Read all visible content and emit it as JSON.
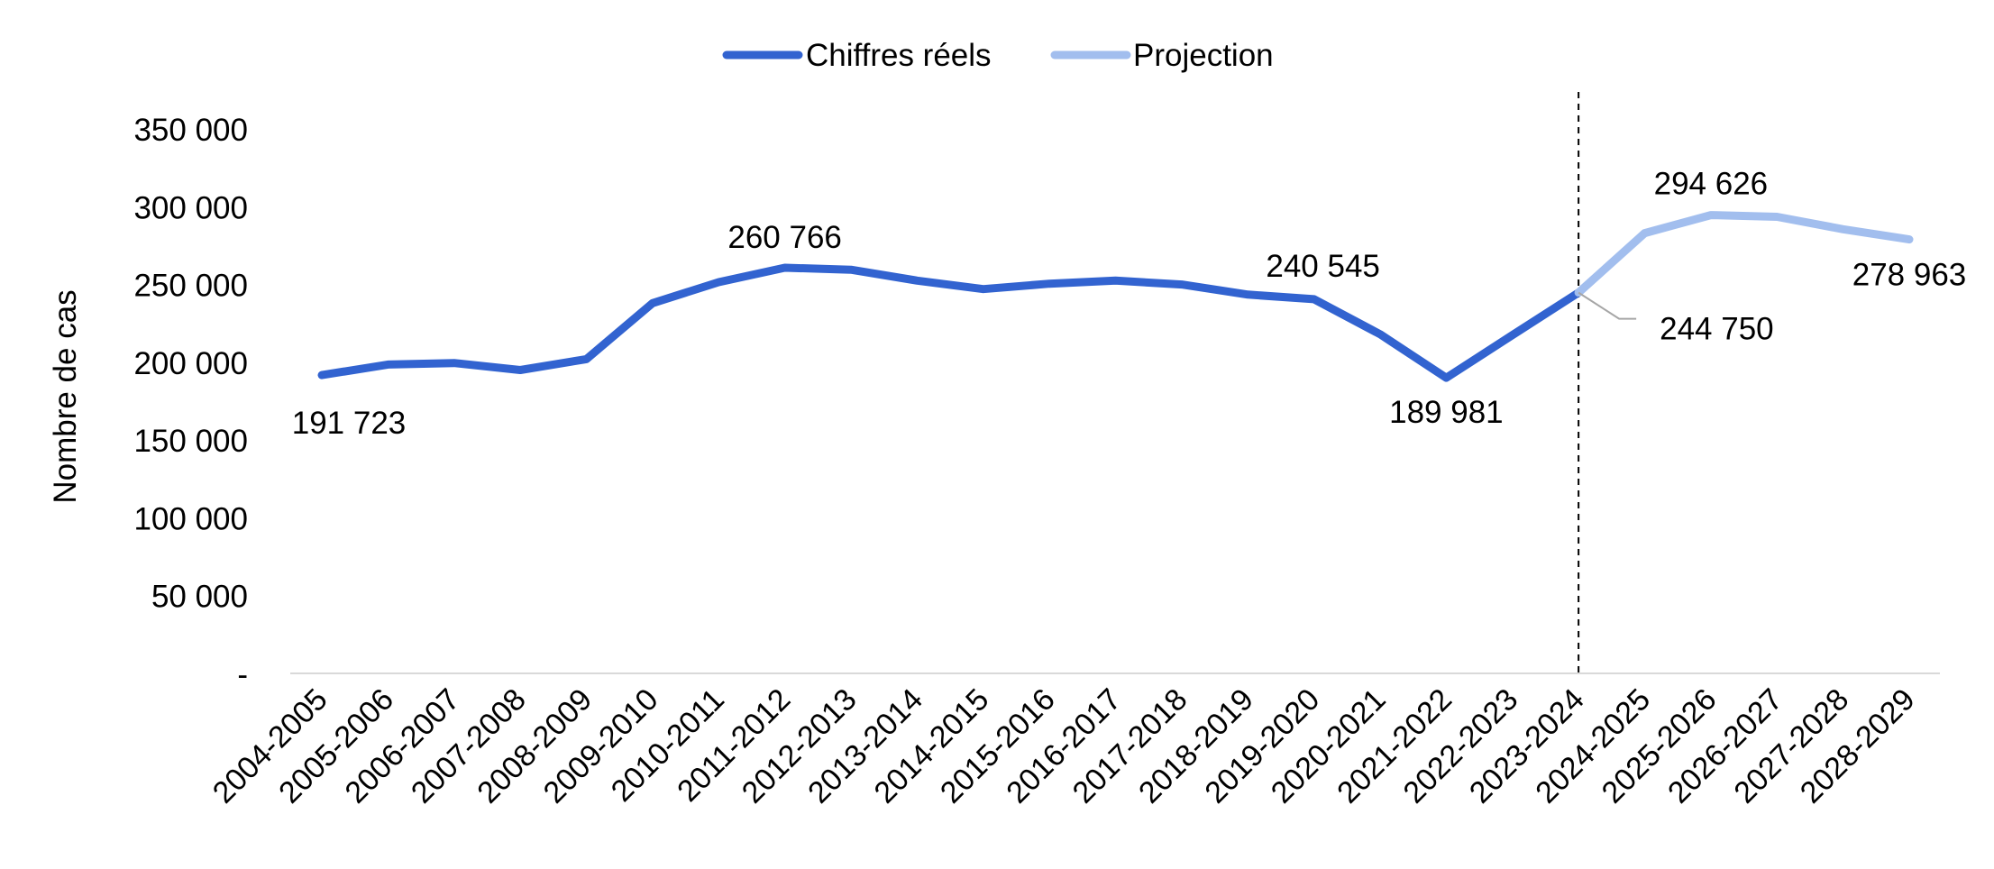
{
  "chart_data": {
    "type": "line",
    "ylabel": "Nombre de cas",
    "ylim": [
      0,
      350000
    ],
    "y_ticks": [
      {
        "value": 0,
        "label": "-"
      },
      {
        "value": 50000,
        "label": "50 000"
      },
      {
        "value": 100000,
        "label": "100 000"
      },
      {
        "value": 150000,
        "label": "150 000"
      },
      {
        "value": 200000,
        "label": "200 000"
      },
      {
        "value": 250000,
        "label": "250 000"
      },
      {
        "value": 300000,
        "label": "300 000"
      },
      {
        "value": 350000,
        "label": "350 000"
      }
    ],
    "categories": [
      "2004-2005",
      "2005-2006",
      "2006-2007",
      "2007-2008",
      "2008-2009",
      "2009-2010",
      "2010-2011",
      "2011-2012",
      "2012-2013",
      "2013-2014",
      "2014-2015",
      "2015-2016",
      "2016-2017",
      "2017-2018",
      "2018-2019",
      "2019-2020",
      "2020-2021",
      "2021-2022",
      "2022-2023",
      "2023-2024",
      "2024-2025",
      "2025-2026",
      "2026-2027",
      "2027-2028",
      "2028-2029"
    ],
    "series": [
      {
        "name": "Chiffres réels",
        "color": "#3263D0",
        "values": [
          191723,
          198500,
          199500,
          195000,
          202000,
          238000,
          251500,
          260766,
          259500,
          252500,
          247000,
          250500,
          252500,
          250000,
          243500,
          240545,
          218000,
          189981,
          217500,
          244750,
          null,
          null,
          null,
          null,
          null
        ]
      },
      {
        "name": "Projection",
        "color": "#A2BEEE",
        "values": [
          null,
          null,
          null,
          null,
          null,
          null,
          null,
          null,
          null,
          null,
          null,
          null,
          null,
          null,
          null,
          null,
          null,
          null,
          null,
          244750,
          283000,
          294626,
          293500,
          285500,
          278963
        ]
      }
    ],
    "data_labels": [
      {
        "series": 0,
        "index": 0,
        "text": "191 723"
      },
      {
        "series": 0,
        "index": 7,
        "text": "260 766"
      },
      {
        "series": 0,
        "index": 15,
        "text": "240 545"
      },
      {
        "series": 0,
        "index": 17,
        "text": "189 981"
      },
      {
        "series": 0,
        "index": 19,
        "text": "244 750"
      },
      {
        "series": 1,
        "index": 21,
        "text": "294 626"
      },
      {
        "series": 1,
        "index": 24,
        "text": "278 963"
      }
    ],
    "reference_line": {
      "index": 19,
      "style": "dashed"
    },
    "grid": false,
    "legend_position": "top-center"
  }
}
